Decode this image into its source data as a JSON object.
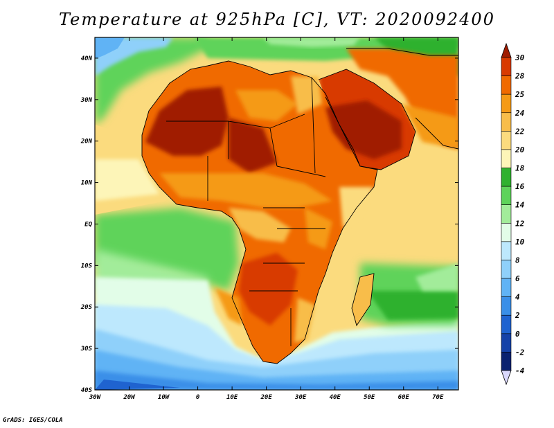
{
  "title": "Temperature at 925hPa [C], VT: 2020092400",
  "credit": "GrADS: IGES/COLA",
  "map": {
    "lat_labels": [
      "40N",
      "30N",
      "20N",
      "10N",
      "EQ",
      "10S",
      "20S",
      "30S",
      "40S"
    ],
    "lon_labels": [
      "30W",
      "20W",
      "10W",
      "0",
      "10E",
      "20E",
      "30E",
      "40E",
      "50E",
      "60E",
      "70E"
    ],
    "lat_range": [
      -40,
      45
    ],
    "lon_range": [
      -30,
      76
    ]
  },
  "colorbar": {
    "labels": [
      "30",
      "28",
      "25",
      "24",
      "22",
      "20",
      "18",
      "16",
      "14",
      "12",
      "10",
      "8",
      "6",
      "4",
      "2",
      "0",
      "-2",
      "-4"
    ],
    "colors": [
      "#a01c00",
      "#d83a00",
      "#f06a00",
      "#f59a16",
      "#f8bd4a",
      "#fbdb7e",
      "#fdf5b8",
      "#2fb12f",
      "#5ed35a",
      "#a2ec9a",
      "#e2fde8",
      "#bde8fd",
      "#8fd0fa",
      "#60b3f5",
      "#3a8fe8",
      "#1f63d0",
      "#1542a8",
      "#0a2270",
      "#dad8fc"
    ]
  }
}
